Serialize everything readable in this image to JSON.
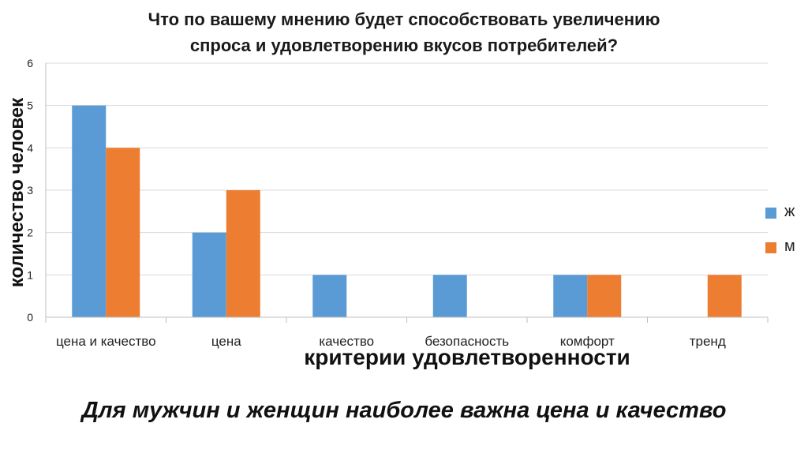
{
  "chart_data": {
    "type": "bar",
    "title_lines": [
      "Что по вашему мнению будет способствовать увеличению",
      "спроса и удовлетворению вкусов потребителей?"
    ],
    "xlabel": "критерии удовлетворенности",
    "ylabel": "количество человек",
    "categories": [
      "цена и качество",
      "цена",
      "качество",
      "безопасность",
      "комфорт",
      "тренд"
    ],
    "series": [
      {
        "name": "ж",
        "color": "#5B9BD5",
        "values": [
          5,
          2,
          1,
          1,
          1,
          0
        ]
      },
      {
        "name": "м",
        "color": "#ED7D31",
        "values": [
          4,
          3,
          0,
          0,
          1,
          1
        ]
      }
    ],
    "ylim": [
      0,
      6
    ],
    "yticks": [
      0,
      1,
      2,
      3,
      4,
      5,
      6
    ],
    "grid": true,
    "legend_position": "right"
  },
  "conclusion": "Для мужчин и женщин наиболее важна цена и качество"
}
